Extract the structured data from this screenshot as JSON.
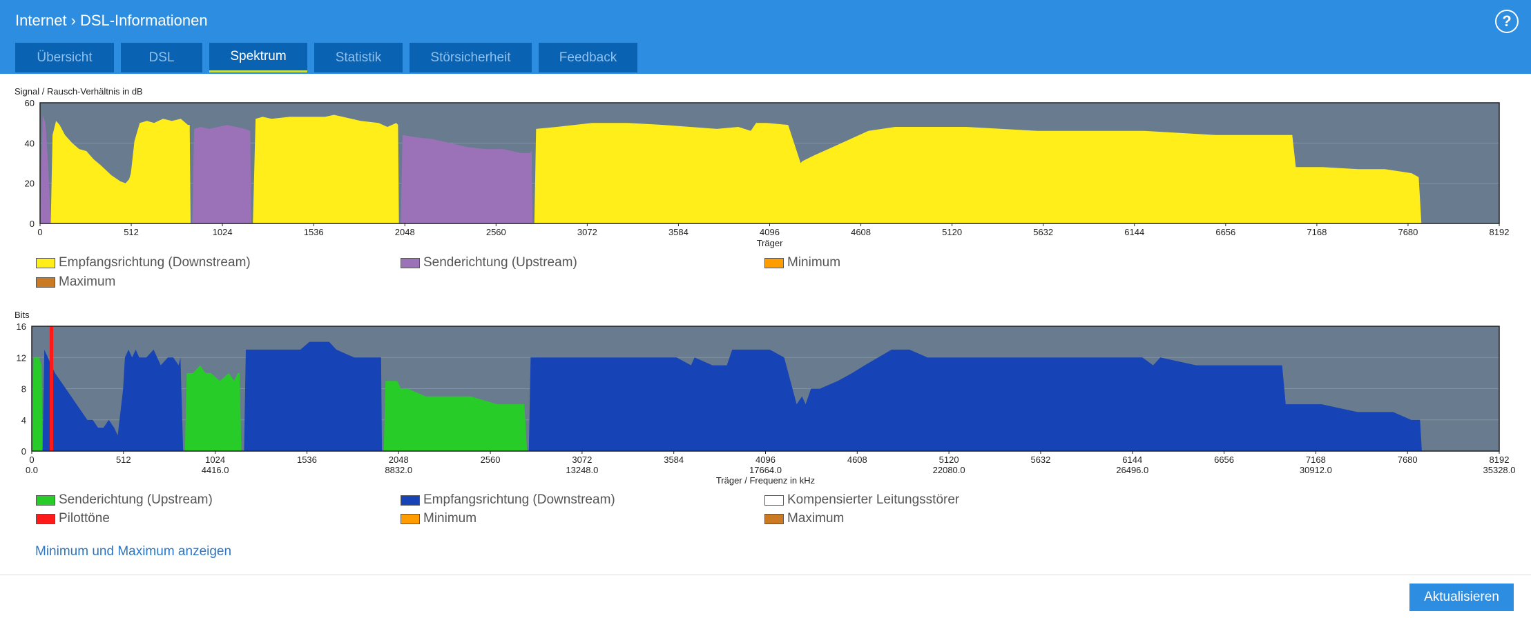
{
  "breadcrumb": {
    "section": "Internet",
    "separator": ">",
    "page": "DSL-Informationen"
  },
  "help_label": "?",
  "tabs": [
    {
      "label": "Übersicht",
      "active": false
    },
    {
      "label": "DSL",
      "active": false
    },
    {
      "label": "Spektrum",
      "active": true
    },
    {
      "label": "Statistik",
      "active": false
    },
    {
      "label": "Störsicherheit",
      "active": false
    },
    {
      "label": "Feedback",
      "active": false
    }
  ],
  "colors": {
    "header": "#2d8de0",
    "tab_bg": "#0a62b2",
    "plot_bg": "#687b8f",
    "downstream_snr": "#ffee1a",
    "upstream_snr": "#9b72b8",
    "downstream_bits": "#1643b5",
    "upstream_bits": "#28cc28",
    "pilot": "#ff1a1a",
    "minimum": "#ff9d00",
    "maximum": "#c97a22"
  },
  "chart_data": [
    {
      "type": "area",
      "ylabel": "Signal / Rausch-Verhältnis in dB",
      "xlabel": "Träger",
      "xlim": [
        0,
        8192
      ],
      "ylim": [
        0,
        60
      ],
      "yticks": [
        "0",
        "20",
        "40",
        "60"
      ],
      "xticks": [
        "0",
        "512",
        "1024",
        "1536",
        "2048",
        "2560",
        "3072",
        "3584",
        "4096",
        "4608",
        "5120",
        "5632",
        "6144",
        "6656",
        "7168",
        "7680",
        "8192"
      ],
      "grid": true,
      "legend": [
        {
          "label": "Empfangsrichtung (Downstream)",
          "color": "#ffee1a"
        },
        {
          "label": "Senderichtung (Upstream)",
          "color": "#9b72b8"
        },
        {
          "label": "Minimum",
          "color": "#ff9d00"
        },
        {
          "label": "Maximum",
          "color": "#c97a22"
        }
      ],
      "series": [
        {
          "name": "Senderichtung (Upstream)",
          "color": "#9b72b8",
          "x": [
            0,
            15,
            30,
            45,
            60
          ],
          "y": [
            0,
            54,
            50,
            30,
            0
          ]
        },
        {
          "name": "Empfangsrichtung (Downstream)",
          "color": "#ffee1a",
          "x": [
            60,
            70,
            90,
            110,
            140,
            180,
            220,
            260,
            300,
            340,
            400,
            450,
            480,
            500,
            510,
            520,
            530,
            560,
            600,
            640,
            690,
            740,
            790,
            830,
            840,
            845
          ],
          "y": [
            0,
            44,
            51,
            49,
            44,
            40,
            37,
            36,
            32,
            29,
            24,
            21,
            20,
            22,
            25,
            33,
            41,
            50,
            51,
            50,
            52,
            51,
            52,
            49,
            49,
            0
          ]
        },
        {
          "name": "Senderichtung (Upstream)",
          "color": "#9b72b8",
          "x": [
            855,
            865,
            900,
            950,
            1000,
            1050,
            1100,
            1150,
            1180,
            1185
          ],
          "y": [
            0,
            47,
            48,
            47,
            48,
            49,
            48,
            47,
            46,
            0
          ]
        },
        {
          "name": "Empfangsrichtung (Downstream)",
          "color": "#ffee1a",
          "x": [
            1195,
            1210,
            1250,
            1300,
            1400,
            1500,
            1600,
            1650,
            1700,
            1800,
            1900,
            1950,
            2000,
            2010,
            2015
          ],
          "y": [
            0,
            52,
            53,
            52,
            53,
            53,
            53,
            54,
            53,
            51,
            50,
            48,
            50,
            49,
            0
          ]
        },
        {
          "name": "Senderichtung (Upstream)",
          "color": "#9b72b8",
          "x": [
            2025,
            2035,
            2100,
            2200,
            2300,
            2400,
            2500,
            2600,
            2700,
            2750,
            2760,
            2765
          ],
          "y": [
            0,
            44,
            43,
            42,
            40,
            38,
            37,
            37,
            35,
            35,
            36,
            0
          ]
        },
        {
          "name": "Empfangsrichtung (Downstream)",
          "color": "#ffee1a",
          "x": [
            2775,
            2785,
            2900,
            3000,
            3100,
            3300,
            3500,
            3650,
            3800,
            3920,
            3990,
            4020,
            4050,
            4080,
            4200,
            4270,
            4280,
            4350,
            4450,
            4550,
            4650,
            4800,
            5000,
            5200,
            5400,
            5600,
            5800,
            6000,
            6200,
            6400,
            6600,
            6800,
            7030,
            7050,
            7200,
            7400,
            7550,
            7700,
            7740,
            7755
          ],
          "y": [
            0,
            47,
            48,
            49,
            50,
            50,
            49,
            48,
            47,
            48,
            46,
            50,
            50,
            50,
            49,
            30,
            31,
            34,
            38,
            42,
            46,
            48,
            48,
            48,
            47,
            46,
            46,
            46,
            46,
            45,
            44,
            44,
            44,
            28,
            28,
            27,
            27,
            25,
            23,
            0
          ]
        }
      ]
    },
    {
      "type": "area",
      "ylabel": "Bits",
      "xlabel": "Träger / Frequenz in kHz",
      "xlim": [
        0,
        8192
      ],
      "ylim": [
        0,
        16
      ],
      "yticks": [
        "0",
        "4",
        "8",
        "12",
        "16"
      ],
      "xticks": [
        "0",
        "512",
        "1024",
        "1536",
        "2048",
        "2560",
        "3072",
        "3584",
        "4096",
        "4608",
        "5120",
        "5632",
        "6144",
        "6656",
        "7168",
        "7680",
        "8192"
      ],
      "xticks_secondary": [
        "0.0",
        "4416.0",
        "8832.0",
        "13248.0",
        "17664.0",
        "22080.0",
        "26496.0",
        "30912.0",
        "35328.0"
      ],
      "grid": true,
      "legend": [
        {
          "label": "Senderichtung (Upstream)",
          "color": "#28cc28"
        },
        {
          "label": "Empfangsrichtung (Downstream)",
          "color": "#1643b5"
        },
        {
          "label": "Kompensierter Leitungsstörer",
          "color": "#ffffff"
        },
        {
          "label": "Pilottöne",
          "color": "#ff1a1a"
        },
        {
          "label": "Minimum",
          "color": "#ff9d00"
        },
        {
          "label": "Maximum",
          "color": "#c97a22"
        }
      ],
      "series": [
        {
          "name": "Senderichtung (Upstream)",
          "color": "#28cc28",
          "x": [
            0,
            10,
            40,
            55,
            60
          ],
          "y": [
            0,
            12,
            12,
            11,
            0
          ]
        },
        {
          "name": "Empfangsrichtung (Downstream)",
          "color": "#1643b5",
          "x": [
            60,
            70,
            90,
            110,
            130,
            160,
            190,
            220,
            250,
            280,
            310,
            340,
            370,
            400,
            430,
            460,
            480,
            490,
            500,
            510,
            520,
            540,
            560,
            580,
            600,
            640,
            680,
            700,
            720,
            760,
            790,
            820,
            830,
            845
          ],
          "y": [
            0,
            13,
            12,
            11,
            10,
            9,
            8,
            7,
            6,
            5,
            4,
            4,
            3,
            3,
            4,
            3,
            2,
            4,
            6,
            8,
            12,
            13,
            12,
            13,
            12,
            12,
            13,
            12,
            11,
            12,
            12,
            11,
            12,
            0
          ]
        },
        {
          "name": "Senderichtung (Upstream)",
          "color": "#28cc28",
          "x": [
            855,
            865,
            900,
            940,
            970,
            1000,
            1050,
            1100,
            1130,
            1150,
            1160,
            1170
          ],
          "y": [
            0,
            10,
            10,
            11,
            10,
            10,
            9,
            10,
            9,
            10,
            10,
            0
          ]
        },
        {
          "name": "Empfangsrichtung (Downstream)",
          "color": "#1643b5",
          "x": [
            1185,
            1195,
            1300,
            1400,
            1500,
            1550,
            1660,
            1700,
            1800,
            1900,
            1950,
            1955
          ],
          "y": [
            0,
            13,
            13,
            13,
            13,
            14,
            14,
            13,
            12,
            12,
            12,
            0
          ]
        },
        {
          "name": "Senderichtung (Upstream)",
          "color": "#28cc28",
          "x": [
            1965,
            1975,
            2040,
            2060,
            2100,
            2200,
            2300,
            2400,
            2450,
            2600,
            2700,
            2750,
            2765
          ],
          "y": [
            0,
            9,
            9,
            8,
            8,
            7,
            7,
            7,
            7,
            6,
            6,
            6,
            0
          ]
        },
        {
          "name": "Empfangsrichtung (Downstream)",
          "color": "#1643b5",
          "x": [
            2775,
            2785,
            2850,
            2950,
            3050,
            3200,
            3400,
            3600,
            3680,
            3700,
            3800,
            3880,
            3910,
            3950,
            4030,
            4120,
            4200,
            4270,
            4300,
            4320,
            4350,
            4400,
            4500,
            4580,
            4650,
            4800,
            4900,
            5000,
            5200,
            5500,
            5800,
            6000,
            6200,
            6260,
            6300,
            6500,
            6800,
            6980,
            7000,
            7200,
            7400,
            7500,
            7600,
            7700,
            7750,
            7760
          ],
          "y": [
            0,
            12,
            12,
            12,
            12,
            12,
            12,
            12,
            11,
            12,
            11,
            11,
            13,
            13,
            13,
            13,
            12,
            6,
            7,
            6,
            8,
            8,
            9,
            10,
            11,
            13,
            13,
            12,
            12,
            12,
            12,
            12,
            12,
            11,
            12,
            11,
            11,
            11,
            6,
            6,
            5,
            5,
            5,
            4,
            4,
            0
          ]
        },
        {
          "name": "Pilottöne",
          "color": "#ff1a1a",
          "x": [
            100,
            120
          ],
          "y": [
            16,
            16
          ]
        }
      ]
    }
  ],
  "link_label": "Minimum und Maximum anzeigen",
  "refresh_label": "Aktualisieren"
}
